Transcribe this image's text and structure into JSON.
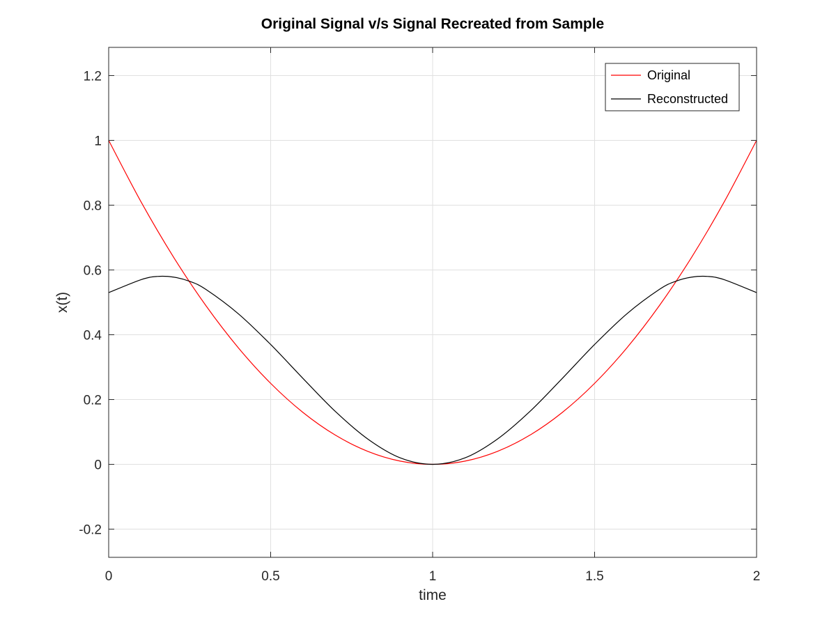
{
  "chart_data": {
    "type": "line",
    "title": "Original Signal v/s Signal Recreated from Sample",
    "xlabel": "time",
    "ylabel": "x(t)",
    "xlim": [
      0,
      2
    ],
    "ylim": [
      -0.287,
      1.287
    ],
    "xticks": [
      0,
      0.5,
      1,
      1.5,
      2
    ],
    "xtick_labels": [
      "0",
      "0.5",
      "1",
      "1.5",
      "2"
    ],
    "yticks": [
      -0.2,
      0,
      0.2,
      0.4,
      0.6,
      0.8,
      1,
      1.2
    ],
    "ytick_labels": [
      "-0.2",
      "0",
      "0.2",
      "0.4",
      "0.6",
      "0.8",
      "1",
      "1.2"
    ],
    "grid": true,
    "legend_position": "top-right",
    "series": [
      {
        "name": "Original",
        "color": "#ff0000",
        "x": [
          0,
          0.1,
          0.2,
          0.3,
          0.4,
          0.5,
          0.6,
          0.7,
          0.8,
          0.9,
          1.0,
          1.1,
          1.2,
          1.3,
          1.4,
          1.5,
          1.6,
          1.7,
          1.8,
          1.9,
          2.0
        ],
        "y": [
          1.0,
          0.81,
          0.64,
          0.49,
          0.36,
          0.25,
          0.16,
          0.09,
          0.04,
          0.01,
          0.0,
          0.01,
          0.04,
          0.09,
          0.16,
          0.25,
          0.36,
          0.49,
          0.64,
          0.81,
          1.0
        ]
      },
      {
        "name": "Reconstructed",
        "color": "#000000",
        "x": [
          0,
          0.1,
          0.15,
          0.2,
          0.25,
          0.3,
          0.4,
          0.5,
          0.6,
          0.7,
          0.8,
          0.9,
          1.0,
          1.1,
          1.2,
          1.3,
          1.4,
          1.5,
          1.6,
          1.7,
          1.75,
          1.8,
          1.85,
          1.9,
          2.0
        ],
        "y": [
          0.53,
          0.57,
          0.58,
          0.578,
          0.565,
          0.54,
          0.465,
          0.37,
          0.265,
          0.163,
          0.078,
          0.02,
          0.0,
          0.02,
          0.078,
          0.163,
          0.265,
          0.37,
          0.465,
          0.54,
          0.565,
          0.578,
          0.58,
          0.57,
          0.53
        ]
      }
    ]
  }
}
